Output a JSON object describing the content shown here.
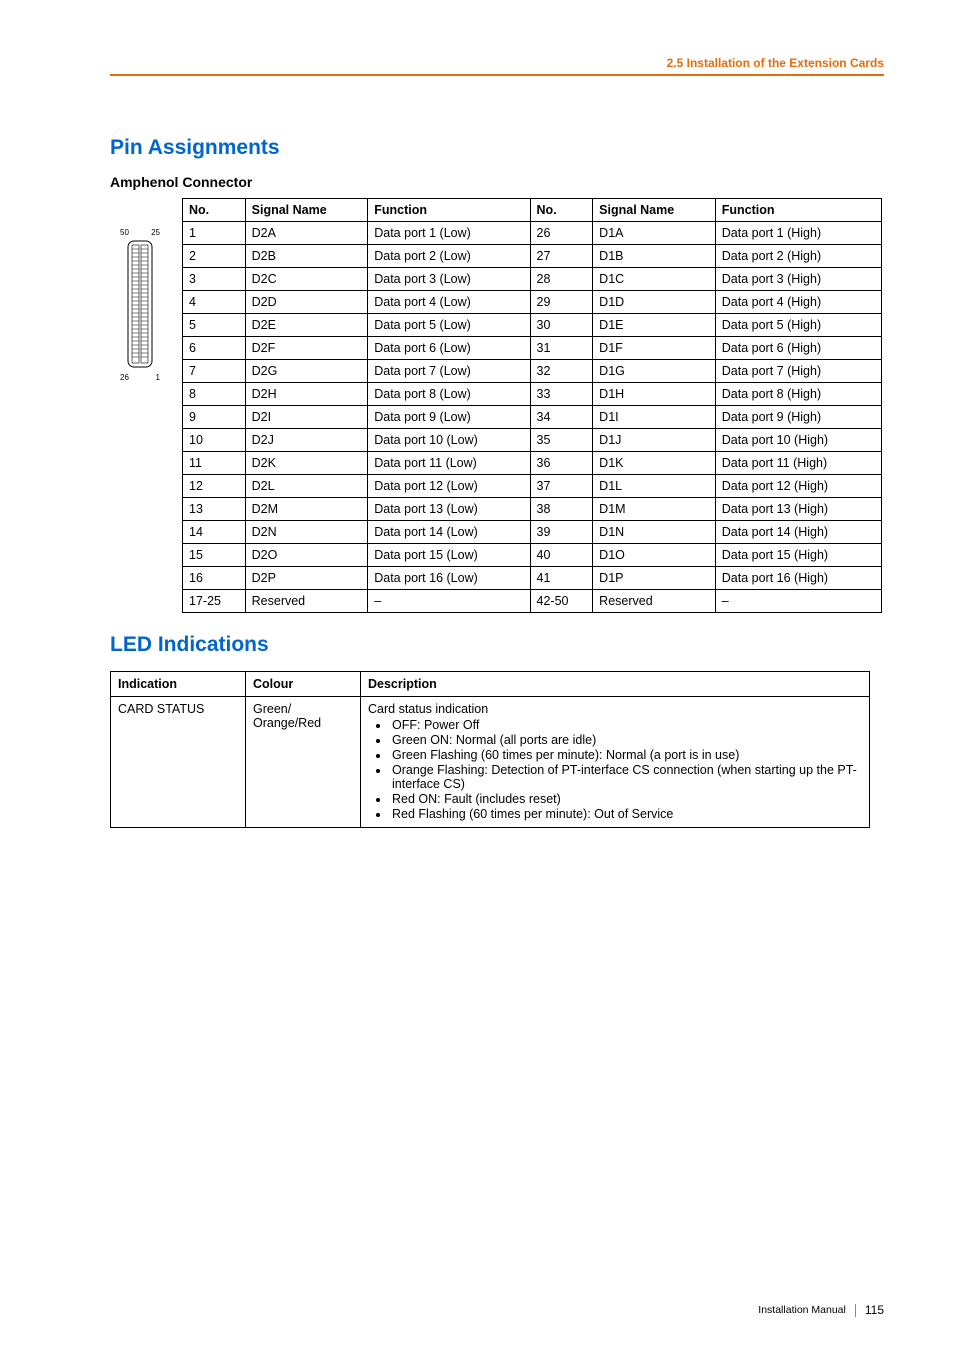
{
  "header": {
    "breadcrumb": "2.5 Installation of the Extension Cards"
  },
  "pin_assignments": {
    "section_title": "Pin Assignments",
    "sub_title": "Amphenol Connector",
    "connector_labels": {
      "tl": "50",
      "tr": "25",
      "bl": "26",
      "br": "1"
    },
    "headers": {
      "no": "No.",
      "signal": "Signal Name",
      "function": "Function"
    },
    "rows": [
      {
        "no1": "1",
        "sig1": "D2A",
        "fn1": "Data port 1 (Low)",
        "no2": "26",
        "sig2": "D1A",
        "fn2": "Data port 1 (High)"
      },
      {
        "no1": "2",
        "sig1": "D2B",
        "fn1": "Data port 2 (Low)",
        "no2": "27",
        "sig2": "D1B",
        "fn2": "Data port 2 (High)"
      },
      {
        "no1": "3",
        "sig1": "D2C",
        "fn1": "Data port 3 (Low)",
        "no2": "28",
        "sig2": "D1C",
        "fn2": "Data port 3 (High)"
      },
      {
        "no1": "4",
        "sig1": "D2D",
        "fn1": "Data port 4 (Low)",
        "no2": "29",
        "sig2": "D1D",
        "fn2": "Data port 4 (High)"
      },
      {
        "no1": "5",
        "sig1": "D2E",
        "fn1": "Data port 5 (Low)",
        "no2": "30",
        "sig2": "D1E",
        "fn2": "Data port 5 (High)"
      },
      {
        "no1": "6",
        "sig1": "D2F",
        "fn1": "Data port 6 (Low)",
        "no2": "31",
        "sig2": "D1F",
        "fn2": "Data port 6 (High)"
      },
      {
        "no1": "7",
        "sig1": "D2G",
        "fn1": "Data port 7 (Low)",
        "no2": "32",
        "sig2": "D1G",
        "fn2": "Data port 7 (High)"
      },
      {
        "no1": "8",
        "sig1": "D2H",
        "fn1": "Data port 8 (Low)",
        "no2": "33",
        "sig2": "D1H",
        "fn2": "Data port 8 (High)"
      },
      {
        "no1": "9",
        "sig1": "D2I",
        "fn1": "Data port 9 (Low)",
        "no2": "34",
        "sig2": "D1I",
        "fn2": "Data port 9 (High)"
      },
      {
        "no1": "10",
        "sig1": "D2J",
        "fn1": "Data port 10 (Low)",
        "no2": "35",
        "sig2": "D1J",
        "fn2": "Data port 10 (High)"
      },
      {
        "no1": "11",
        "sig1": "D2K",
        "fn1": "Data port 11 (Low)",
        "no2": "36",
        "sig2": "D1K",
        "fn2": "Data port 11 (High)"
      },
      {
        "no1": "12",
        "sig1": "D2L",
        "fn1": "Data port 12 (Low)",
        "no2": "37",
        "sig2": "D1L",
        "fn2": "Data port 12 (High)"
      },
      {
        "no1": "13",
        "sig1": "D2M",
        "fn1": "Data port 13 (Low)",
        "no2": "38",
        "sig2": "D1M",
        "fn2": "Data port 13 (High)"
      },
      {
        "no1": "14",
        "sig1": "D2N",
        "fn1": "Data port 14 (Low)",
        "no2": "39",
        "sig2": "D1N",
        "fn2": "Data port 14 (High)"
      },
      {
        "no1": "15",
        "sig1": "D2O",
        "fn1": "Data port 15 (Low)",
        "no2": "40",
        "sig2": "D1O",
        "fn2": "Data port 15 (High)"
      },
      {
        "no1": "16",
        "sig1": "D2P",
        "fn1": "Data port 16 (Low)",
        "no2": "41",
        "sig2": "D1P",
        "fn2": "Data port 16 (High)"
      },
      {
        "no1": "17-25",
        "sig1": "Reserved",
        "fn1": "–",
        "no2": "42-50",
        "sig2": "Reserved",
        "fn2": "–"
      }
    ]
  },
  "led_indications": {
    "section_title": "LED Indications",
    "headers": {
      "indication": "Indication",
      "colour": "Colour",
      "description": "Description"
    },
    "row": {
      "indication": "CARD STATUS",
      "colour_line1": "Green/",
      "colour_line2": "Orange/Red",
      "desc_title": "Card status indication",
      "items": [
        "OFF: Power Off",
        "Green ON: Normal (all ports are idle)",
        "Green Flashing (60 times per minute): Normal (a port is in use)",
        "Orange Flashing: Detection of PT-interface CS connection (when starting up the PT-interface CS)",
        "Red ON: Fault (includes reset)",
        "Red Flashing (60 times per minute): Out of Service"
      ]
    }
  },
  "footer": {
    "label": "Installation Manual",
    "page": "115"
  },
  "colors": {
    "accent": "#e86c0a",
    "link_blue": "#0066cc"
  }
}
